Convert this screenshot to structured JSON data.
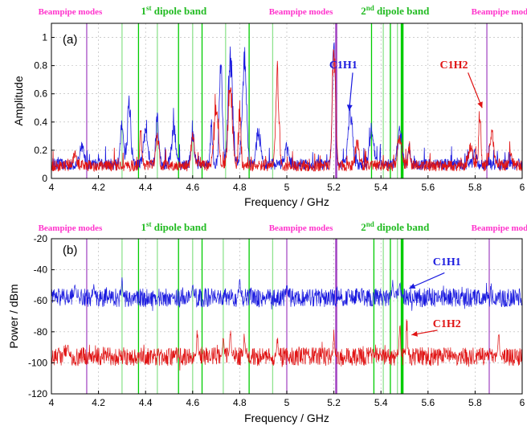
{
  "colors": {
    "blue": "#1a1adf",
    "red": "#e01414",
    "green": "#00cc00",
    "green_light": "#8fe38f",
    "beampipe": "#ff33cc",
    "beampipe_line": "#a040c0",
    "dipole_label": "#22bb22",
    "axes": "#000000",
    "grid": "#b0b0b0"
  },
  "chart_data": [
    {
      "type": "line",
      "panel_label": "(a)",
      "xlabel": "Frequency / GHz",
      "ylabel": "Amplitude",
      "xlim": [
        4,
        6
      ],
      "ylim": [
        0,
        1.1
      ],
      "xticks": [
        "4",
        "4.2",
        "4.4",
        "4.6",
        "4.8",
        "5",
        "5.2",
        "5.4",
        "5.6",
        "5.8",
        "6"
      ],
      "yticks": [
        "0",
        "0.2",
        "0.4",
        "0.6",
        "0.8",
        "1"
      ],
      "grid": true,
      "band_labels": [
        {
          "text": "Beampipe modes",
          "style": "beampipe",
          "x": 4.08
        },
        {
          "text": "1",
          "sup": "st",
          "rest": " dipole band",
          "style": "dipole",
          "x": 4.52
        },
        {
          "text": "Beampipe modes",
          "style": "beampipe",
          "x": 5.06
        },
        {
          "text": "2",
          "sup": "nd",
          "rest": " dipole band",
          "style": "dipole",
          "x": 5.46
        },
        {
          "text": "Beampipe modes",
          "style": "beampipe",
          "x": 5.92
        }
      ],
      "series": [
        {
          "name": "C1H1",
          "color": "blue",
          "baseline": 0.06,
          "peaks": [
            [
              4.13,
              0.2
            ],
            [
              4.3,
              0.35
            ],
            [
              4.33,
              0.52
            ],
            [
              4.4,
              0.32
            ],
            [
              4.45,
              0.38
            ],
            [
              4.52,
              0.32
            ],
            [
              4.6,
              0.3
            ],
            [
              4.68,
              0.35
            ],
            [
              4.72,
              0.74
            ],
            [
              4.76,
              0.86
            ],
            [
              4.82,
              0.8
            ],
            [
              4.88,
              0.3
            ],
            [
              5.0,
              0.18
            ],
            [
              5.2,
              0.92
            ],
            [
              5.27,
              0.45
            ],
            [
              5.36,
              0.3
            ],
            [
              5.48,
              0.3
            ],
            [
              5.52,
              0.2
            ],
            [
              5.8,
              0.15
            ]
          ],
          "annotation": {
            "text": "C1H1",
            "x": 5.26,
            "y": 0.52
          }
        },
        {
          "name": "C1H2",
          "color": "red",
          "baseline": 0.05,
          "peaks": [
            [
              4.1,
              0.12
            ],
            [
              4.38,
              0.3
            ],
            [
              4.45,
              0.25
            ],
            [
              4.6,
              0.28
            ],
            [
              4.7,
              0.45
            ],
            [
              4.76,
              0.62
            ],
            [
              4.8,
              0.5
            ],
            [
              4.96,
              0.72
            ],
            [
              5.2,
              0.95
            ],
            [
              5.3,
              0.2
            ],
            [
              5.48,
              0.25
            ],
            [
              5.52,
              0.2
            ],
            [
              5.78,
              0.2
            ],
            [
              5.82,
              0.48
            ],
            [
              5.87,
              0.28
            ],
            [
              5.95,
              0.15
            ]
          ],
          "annotation": {
            "text": "C1H2",
            "x": 5.84,
            "y": 0.45
          }
        }
      ],
      "vlines": {
        "beampipe": [
          4.15,
          5.21,
          5.85
        ],
        "dipole1": [
          4.3,
          4.37,
          4.45,
          4.54,
          4.6,
          4.64,
          4.74,
          4.84,
          4.94
        ],
        "dipole2": [
          5.36,
          5.41,
          5.44,
          5.47,
          5.49
        ]
      }
    },
    {
      "type": "line",
      "panel_label": "(b)",
      "xlabel": "Frequency / GHz",
      "ylabel": "Power / dBm",
      "xlim": [
        4,
        6
      ],
      "ylim": [
        -120,
        -20
      ],
      "xticks": [
        "4",
        "4.2",
        "4.4",
        "4.6",
        "4.8",
        "5",
        "5.2",
        "5.4",
        "5.6",
        "5.8",
        "6"
      ],
      "yticks": [
        "-20",
        "-40",
        "-60",
        "-80",
        "-100",
        "-120"
      ],
      "grid": true,
      "band_labels": [
        {
          "text": "Beampipe modes",
          "style": "beampipe",
          "x": 4.08
        },
        {
          "text": "1",
          "sup": "st",
          "rest": " dipole band",
          "style": "dipole",
          "x": 4.52
        },
        {
          "text": "Beampipe modes",
          "style": "beampipe",
          "x": 5.06
        },
        {
          "text": "2",
          "sup": "nd",
          "rest": " dipole band",
          "style": "dipole",
          "x": 5.46
        },
        {
          "text": "Beampipe modes",
          "style": "beampipe",
          "x": 5.92
        }
      ],
      "series": [
        {
          "name": "C1H1",
          "color": "blue",
          "baseline": -58,
          "noise": 6,
          "peaks": [
            [
              4.1,
              -48
            ],
            [
              4.18,
              -49
            ],
            [
              4.3,
              -46
            ],
            [
              4.6,
              -48
            ],
            [
              4.8,
              -47
            ],
            [
              5.0,
              -49
            ],
            [
              5.45,
              -45
            ],
            [
              5.48,
              -47
            ]
          ],
          "annotation": {
            "text": "C1H1",
            "x": 5.56,
            "y": -47
          }
        },
        {
          "name": "C1H2",
          "color": "red",
          "baseline": -96,
          "noise": 6,
          "peaks": [
            [
              4.07,
              -86
            ],
            [
              4.62,
              -78
            ],
            [
              4.73,
              -80
            ],
            [
              4.76,
              -75
            ],
            [
              4.82,
              -78
            ],
            [
              4.96,
              -83
            ],
            [
              5.2,
              -80
            ],
            [
              5.48,
              -72
            ],
            [
              5.51,
              -70
            ],
            [
              5.9,
              -74
            ]
          ],
          "annotation": {
            "text": "C1H2",
            "x": 5.62,
            "y": -78
          }
        }
      ],
      "vlines": {
        "beampipe": [
          4.15,
          5.0,
          5.21,
          5.86
        ],
        "dipole1": [
          4.3,
          4.37,
          4.45,
          4.54,
          4.6,
          4.64,
          4.73,
          4.84,
          4.94
        ],
        "dipole2": [
          5.37,
          5.41,
          5.44,
          5.47,
          5.49
        ]
      }
    }
  ]
}
